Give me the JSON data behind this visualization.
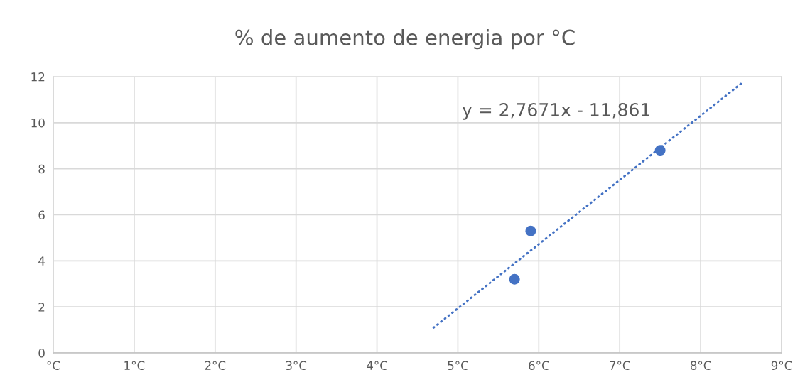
{
  "chart_data": {
    "type": "scatter",
    "title": "% de aumento de energia por °C",
    "series": [
      {
        "color": "#4472c4",
        "x": [
          5.7,
          5.9,
          7.5
        ],
        "values": [
          3.2,
          5.3,
          8.8
        ],
        "marker": "circle"
      },
      {
        "type": "line",
        "color": "#4472c4",
        "x": [
          4.7,
          8.5
        ],
        "values": [
          1.1,
          11.7
        ],
        "line_style": "dotted",
        "marker": "none"
      }
    ],
    "xlim": [
      0,
      9
    ],
    "ylim": [
      0,
      12
    ],
    "xticks": [
      {
        "value": 0,
        "label": "°C"
      },
      {
        "value": 1,
        "label": "1°C"
      },
      {
        "value": 2,
        "label": "2°C"
      },
      {
        "value": 3,
        "label": "3°C"
      },
      {
        "value": 4,
        "label": "4°C"
      },
      {
        "value": 5,
        "label": "5°C"
      },
      {
        "value": 6,
        "label": "6°C"
      },
      {
        "value": 7,
        "label": "7°C"
      },
      {
        "value": 8,
        "label": "8°C"
      },
      {
        "value": 9,
        "label": "9°C"
      }
    ],
    "yticks": [
      0,
      2,
      4,
      6,
      8,
      10,
      12
    ],
    "grid": true,
    "annotations": [
      "y = 2,7671x - 11,861"
    ]
  }
}
